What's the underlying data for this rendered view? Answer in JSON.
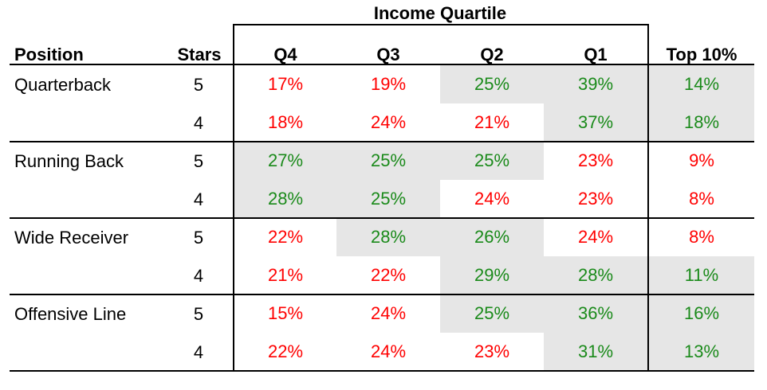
{
  "chart_data": {
    "type": "table",
    "group_header": "Income Quartile",
    "columns": [
      "Position",
      "Stars",
      "Q4",
      "Q3",
      "Q2",
      "Q1",
      "Top 10%"
    ],
    "colors": {
      "positive": "#1a8a1a",
      "negative": "#ff0000",
      "shade": "#e6e6e6"
    },
    "groups": [
      {
        "position": "Quarterback",
        "rows": [
          {
            "stars": "5",
            "cells": [
              {
                "value": "17%",
                "color": "negative",
                "shaded": false
              },
              {
                "value": "19%",
                "color": "negative",
                "shaded": false
              },
              {
                "value": "25%",
                "color": "positive",
                "shaded": true
              },
              {
                "value": "39%",
                "color": "positive",
                "shaded": true
              },
              {
                "value": "14%",
                "color": "positive",
                "shaded": true
              }
            ]
          },
          {
            "stars": "4",
            "cells": [
              {
                "value": "18%",
                "color": "negative",
                "shaded": false
              },
              {
                "value": "24%",
                "color": "negative",
                "shaded": false
              },
              {
                "value": "21%",
                "color": "negative",
                "shaded": false
              },
              {
                "value": "37%",
                "color": "positive",
                "shaded": true
              },
              {
                "value": "18%",
                "color": "positive",
                "shaded": true
              }
            ]
          }
        ]
      },
      {
        "position": "Running Back",
        "rows": [
          {
            "stars": "5",
            "cells": [
              {
                "value": "27%",
                "color": "positive",
                "shaded": true
              },
              {
                "value": "25%",
                "color": "positive",
                "shaded": true
              },
              {
                "value": "25%",
                "color": "positive",
                "shaded": true
              },
              {
                "value": "23%",
                "color": "negative",
                "shaded": false
              },
              {
                "value": "9%",
                "color": "negative",
                "shaded": false
              }
            ]
          },
          {
            "stars": "4",
            "cells": [
              {
                "value": "28%",
                "color": "positive",
                "shaded": true
              },
              {
                "value": "25%",
                "color": "positive",
                "shaded": true
              },
              {
                "value": "24%",
                "color": "negative",
                "shaded": false
              },
              {
                "value": "23%",
                "color": "negative",
                "shaded": false
              },
              {
                "value": "8%",
                "color": "negative",
                "shaded": false
              }
            ]
          }
        ]
      },
      {
        "position": "Wide Receiver",
        "rows": [
          {
            "stars": "5",
            "cells": [
              {
                "value": "22%",
                "color": "negative",
                "shaded": false
              },
              {
                "value": "28%",
                "color": "positive",
                "shaded": true
              },
              {
                "value": "26%",
                "color": "positive",
                "shaded": true
              },
              {
                "value": "24%",
                "color": "negative",
                "shaded": false
              },
              {
                "value": "8%",
                "color": "negative",
                "shaded": false
              }
            ]
          },
          {
            "stars": "4",
            "cells": [
              {
                "value": "21%",
                "color": "negative",
                "shaded": false
              },
              {
                "value": "22%",
                "color": "negative",
                "shaded": false
              },
              {
                "value": "29%",
                "color": "positive",
                "shaded": true
              },
              {
                "value": "28%",
                "color": "positive",
                "shaded": true
              },
              {
                "value": "11%",
                "color": "positive",
                "shaded": true
              }
            ]
          }
        ]
      },
      {
        "position": "Offensive Line",
        "rows": [
          {
            "stars": "5",
            "cells": [
              {
                "value": "15%",
                "color": "negative",
                "shaded": false
              },
              {
                "value": "24%",
                "color": "negative",
                "shaded": false
              },
              {
                "value": "25%",
                "color": "positive",
                "shaded": true
              },
              {
                "value": "36%",
                "color": "positive",
                "shaded": true
              },
              {
                "value": "16%",
                "color": "positive",
                "shaded": true
              }
            ]
          },
          {
            "stars": "4",
            "cells": [
              {
                "value": "22%",
                "color": "negative",
                "shaded": false
              },
              {
                "value": "24%",
                "color": "negative",
                "shaded": false
              },
              {
                "value": "23%",
                "color": "negative",
                "shaded": false
              },
              {
                "value": "31%",
                "color": "positive",
                "shaded": true
              },
              {
                "value": "13%",
                "color": "positive",
                "shaded": true
              }
            ]
          }
        ]
      }
    ]
  }
}
